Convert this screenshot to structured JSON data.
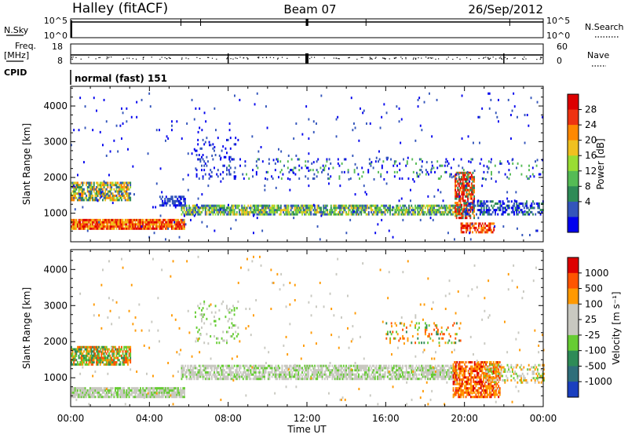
{
  "header": {
    "station": "Halley (fitACF)",
    "beam": "Beam 07",
    "date": "26/Sep/2012"
  },
  "summary_strip": {
    "nsky_label": "N.Sky",
    "nsky_ticks": [
      "10^5",
      "10^0"
    ],
    "nsearch_label": "N.Search",
    "nsearch_ticks": [
      "10^5",
      "10^0"
    ],
    "freq_label": "Freq.",
    "freq_unit": "[MHz]",
    "freq_ticks": [
      "18",
      "8"
    ],
    "nave_label": "Nave",
    "nave_ticks": [
      "60",
      "0"
    ],
    "cpid_label": "CPID",
    "cpid_value": "normal (fast) 151"
  },
  "chart_data": [
    {
      "type": "heatmap",
      "panel": "power",
      "ylabel": "Slant Range [km]",
      "yticks": [
        "1000",
        "2000",
        "3000",
        "4000"
      ],
      "ylim": [
        200,
        4550
      ],
      "xlim_hours": [
        0,
        24
      ],
      "colorbar_label": "Power [dB]",
      "colorbar_ticks": [
        "28",
        "24",
        "20",
        "16",
        "12",
        "8",
        "4"
      ],
      "colorbar_colors": [
        "#0000ee",
        "#3355bb",
        "#2e8b57",
        "#55bb55",
        "#99dd33",
        "#f0c020",
        "#ff8800",
        "#ee3311",
        "#dd0000"
      ]
    },
    {
      "type": "heatmap",
      "panel": "velocity",
      "ylabel": "Slant Range [km]",
      "yticks": [
        "1000",
        "2000",
        "3000",
        "4000"
      ],
      "ylim": [
        200,
        4550
      ],
      "xlim_hours": [
        0,
        24
      ],
      "colorbar_label": "Velocity [m s⁻¹]",
      "colorbar_ticks": [
        "1000",
        "500",
        "100",
        "25",
        "-25",
        "-100",
        "-500",
        "-1000"
      ],
      "colorbar_colors": [
        "#1a3fbf",
        "#2e6e7a",
        "#2e8b57",
        "#66cc33",
        "#c8c8c0",
        "#c8c8c0",
        "#ff9900",
        "#ff5500",
        "#dd0000"
      ]
    }
  ],
  "x_axis": {
    "ticks": [
      "00:00",
      "04:00",
      "08:00",
      "12:00",
      "16:00",
      "20:00",
      "00:00"
    ],
    "label": "Time UT"
  }
}
